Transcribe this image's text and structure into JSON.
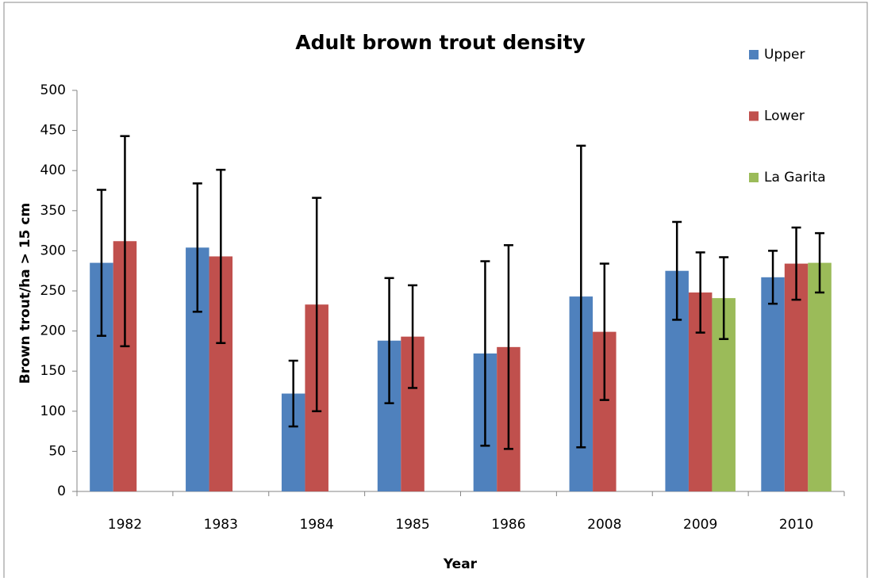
{
  "chart_data": {
    "type": "bar",
    "title": "Adult brown trout density",
    "x_label": "Year",
    "y_label": "Brown trout/ha > 15 cm",
    "categories": [
      "1982",
      "1983",
      "1984",
      "1985",
      "1986",
      "2008",
      "2009",
      "2010"
    ],
    "series": [
      {
        "name": "Upper",
        "color": "#4f81bd",
        "values": [
          285,
          304,
          122,
          188,
          172,
          243,
          275,
          267
        ],
        "errors": [
          91,
          80,
          41,
          78,
          115,
          188,
          61,
          33
        ]
      },
      {
        "name": "Lower",
        "color": "#c0504d",
        "values": [
          312,
          293,
          233,
          193,
          180,
          199,
          248,
          284
        ],
        "errors": [
          131,
          108,
          133,
          64,
          127,
          85,
          50,
          45
        ]
      },
      {
        "name": "La Garita",
        "color": "#9bbb59",
        "values": [
          null,
          null,
          null,
          null,
          null,
          null,
          241,
          285
        ],
        "errors": [
          null,
          null,
          null,
          null,
          null,
          null,
          51,
          37
        ]
      }
    ],
    "ylim": [
      0,
      500
    ],
    "yticks": [
      0,
      50,
      100,
      150,
      200,
      250,
      300,
      350,
      400,
      450,
      500
    ],
    "grid": false,
    "legend": "right"
  }
}
